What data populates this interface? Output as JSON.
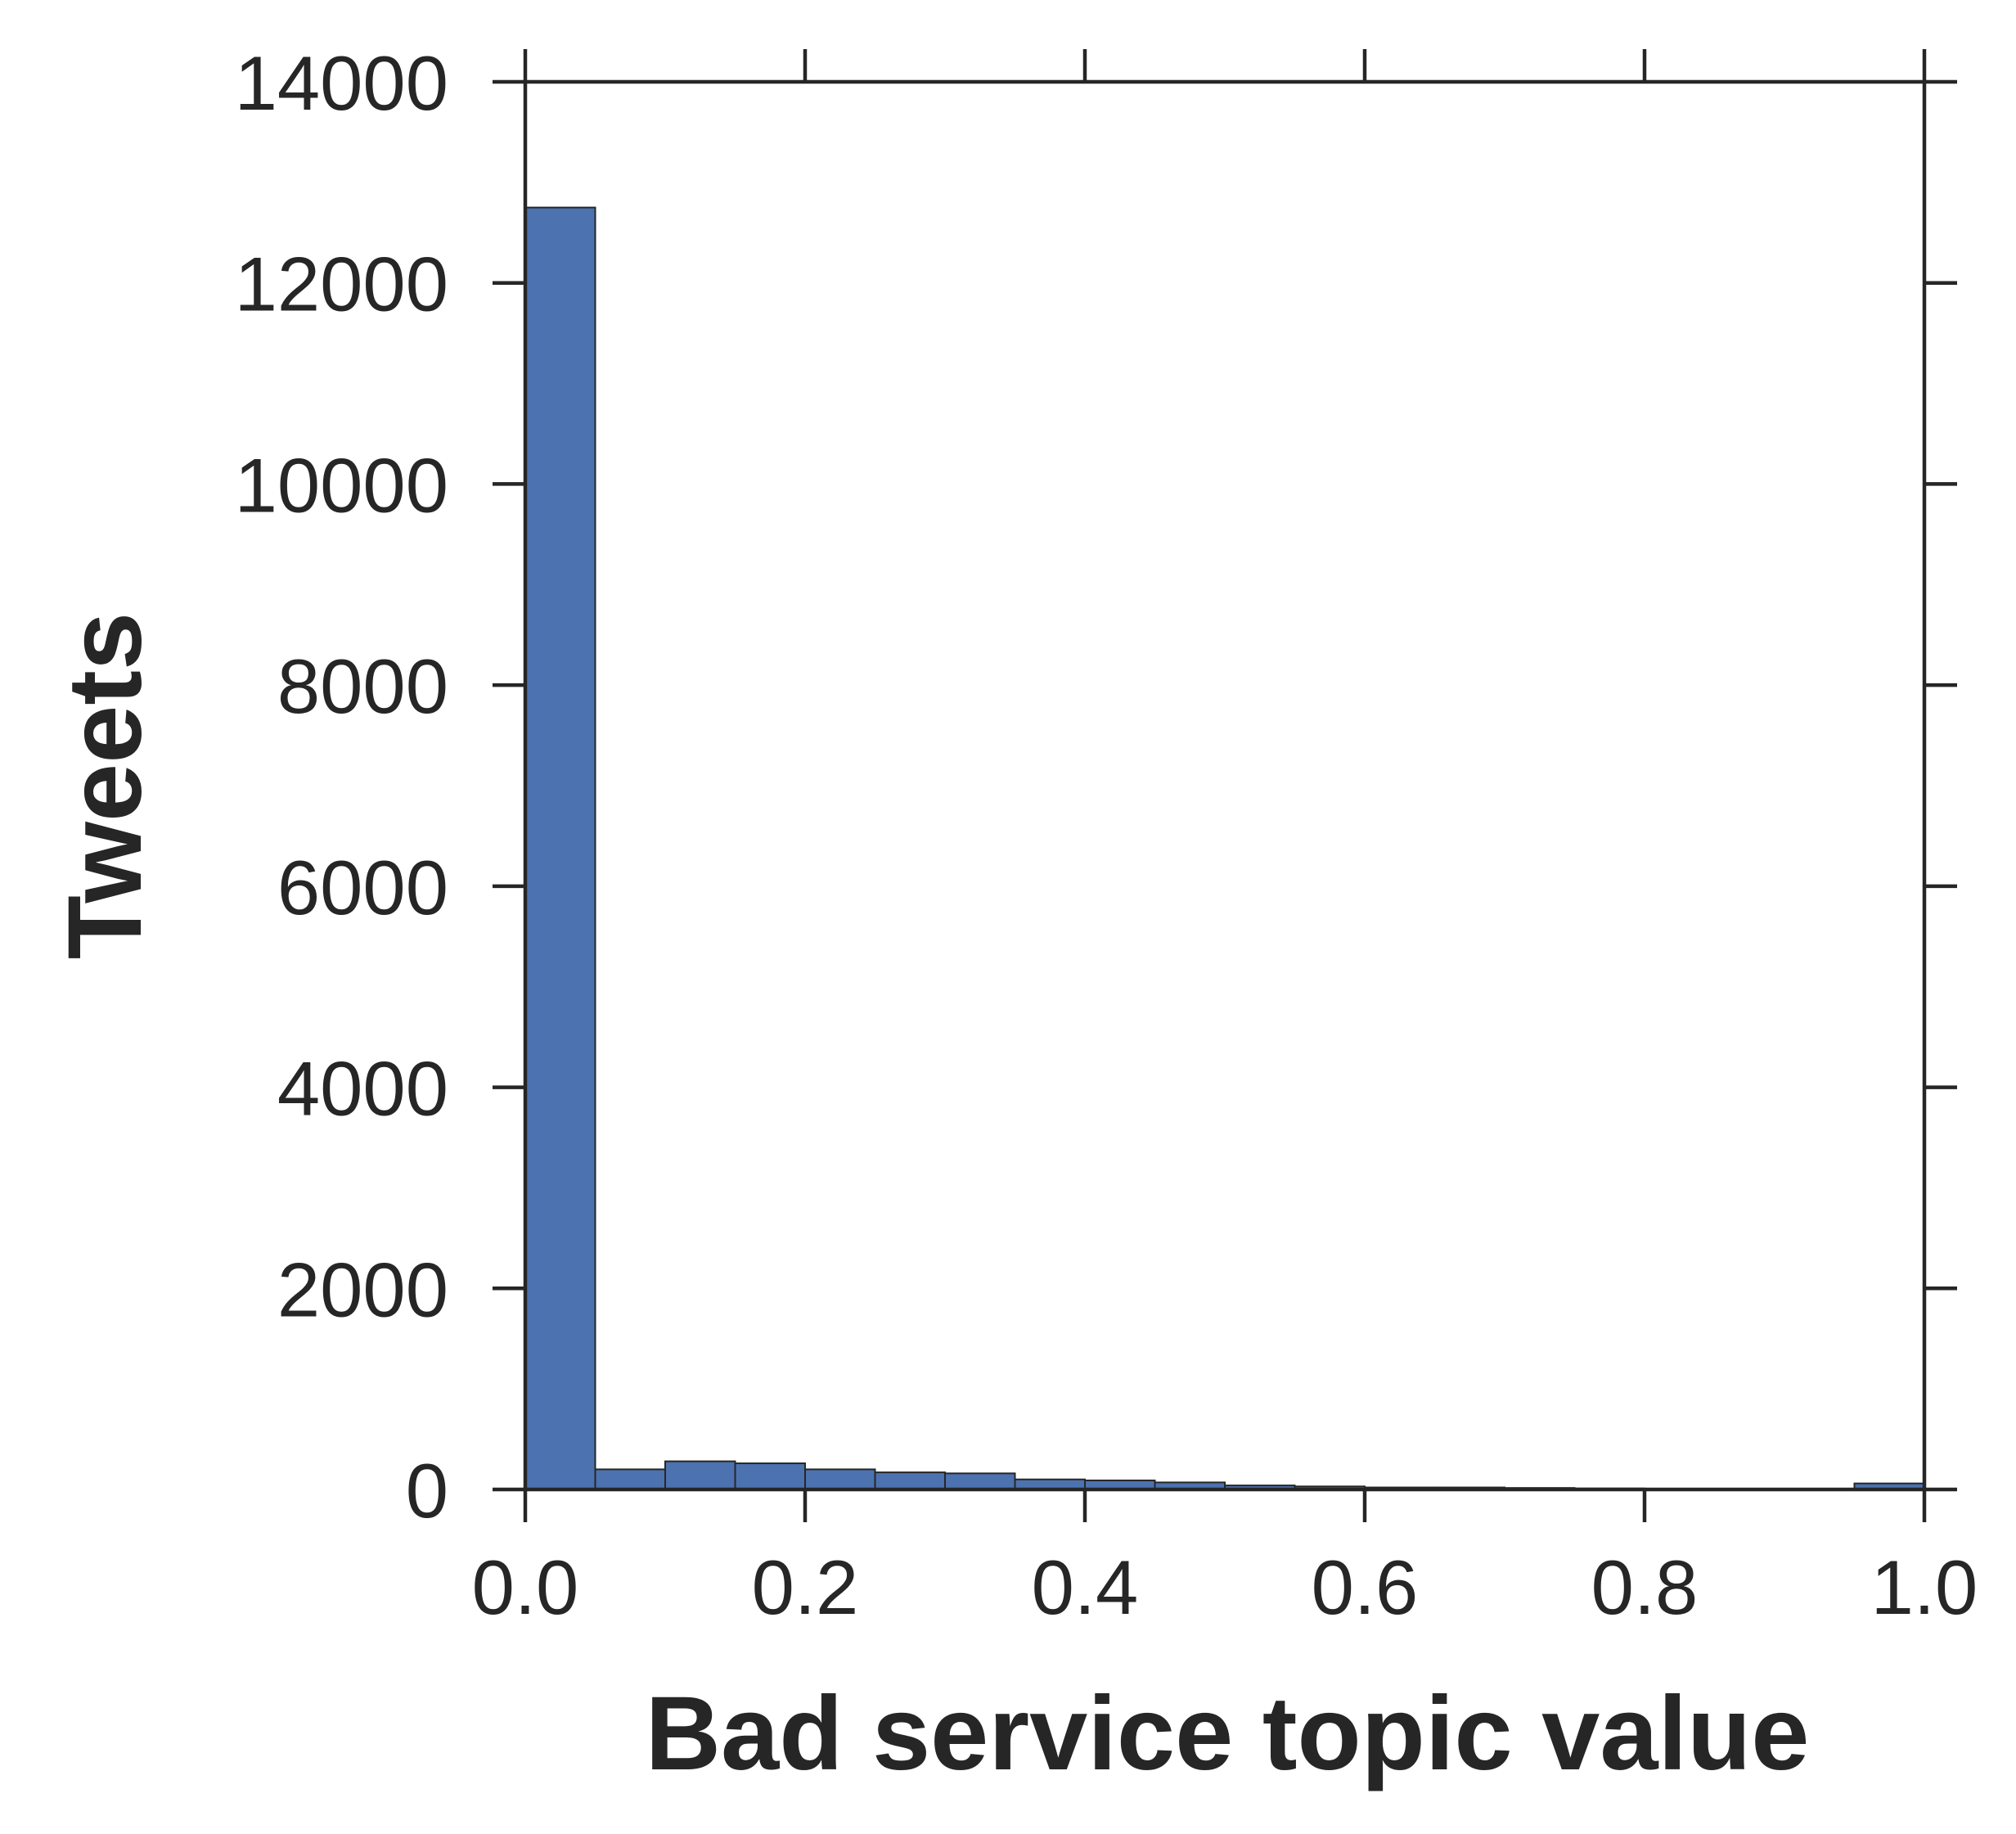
{
  "chart_data": {
    "type": "bar",
    "title": "",
    "xlabel": "Bad service topic value",
    "ylabel": "Tweets",
    "xlim": [
      0.0,
      1.0
    ],
    "ylim": [
      0,
      14000
    ],
    "xticks": [
      "0.0",
      "0.2",
      "0.4",
      "0.6",
      "0.8",
      "1.0"
    ],
    "yticks": [
      "0",
      "2000",
      "4000",
      "6000",
      "8000",
      "10000",
      "12000",
      "14000"
    ],
    "bin_edges": [
      0.0,
      0.05,
      0.1,
      0.15,
      0.2,
      0.25,
      0.3,
      0.35,
      0.4,
      0.45,
      0.5,
      0.55,
      0.6,
      0.65,
      0.7,
      0.75,
      0.8,
      0.85,
      0.9,
      0.95,
      1.0
    ],
    "values": [
      12750,
      200,
      280,
      260,
      200,
      170,
      160,
      100,
      90,
      70,
      40,
      30,
      20,
      20,
      15,
      10,
      5,
      5,
      5,
      60
    ],
    "bar_color": "#4c72b0",
    "edge_color": "#262626",
    "grid": false
  }
}
